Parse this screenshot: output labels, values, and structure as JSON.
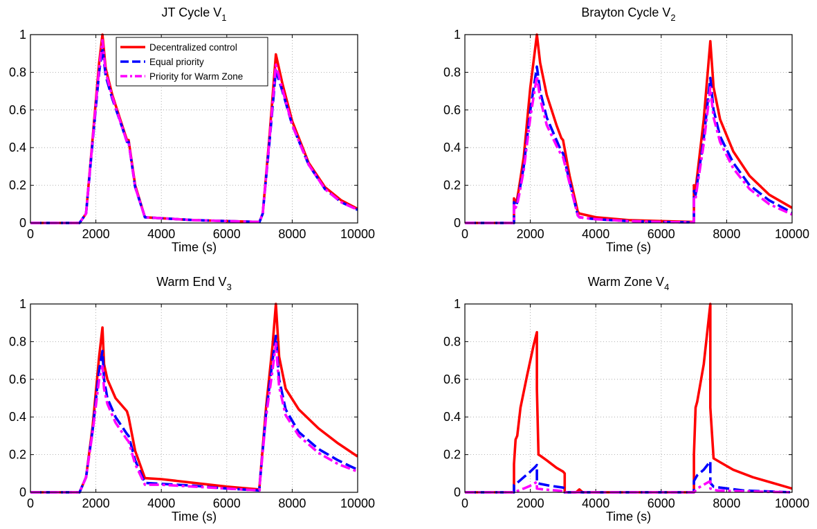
{
  "figure": {
    "legend_entries": [
      "Decentralized control",
      "Equal priority",
      "Priority for Warm Zone"
    ]
  },
  "chart_data": [
    {
      "type": "line",
      "title": "JT Cycle V",
      "title_subscript": "1",
      "xlabel": "Time (s)",
      "ylabel": "",
      "xlim": [
        0,
        10000
      ],
      "ylim": [
        0,
        1
      ],
      "xticks": [
        "0",
        "2000",
        "4000",
        "6000",
        "8000",
        "10000"
      ],
      "yticks": [
        "0",
        "0.2",
        "0.4",
        "0.6",
        "0.8",
        "1"
      ],
      "grid": true,
      "legend": "top-left",
      "series": [
        {
          "name": "Decentralized control",
          "color": "#ff0000",
          "style": "solid",
          "x": [
            0,
            1500,
            1700,
            1900,
            2100,
            2200,
            2300,
            2500,
            2800,
            2950,
            3000,
            3200,
            3500,
            4000,
            5000,
            6000,
            7000,
            7100,
            7300,
            7500,
            7700,
            8000,
            8500,
            9000,
            9500,
            10000
          ],
          "y": [
            0,
            0,
            0.05,
            0.45,
            0.85,
            1.0,
            0.82,
            0.68,
            0.52,
            0.44,
            0.44,
            0.2,
            0.03,
            0.025,
            0.015,
            0.01,
            0.005,
            0.05,
            0.45,
            0.895,
            0.74,
            0.54,
            0.32,
            0.19,
            0.12,
            0.075
          ]
        },
        {
          "name": "Equal priority",
          "color": "#0000ff",
          "style": "dashed",
          "x": [
            0,
            1500,
            1700,
            1900,
            2100,
            2200,
            2300,
            2500,
            2800,
            2950,
            3000,
            3200,
            3500,
            4000,
            5000,
            6000,
            7000,
            7100,
            7300,
            7500,
            7700,
            8000,
            8500,
            9000,
            9500,
            10000
          ],
          "y": [
            0,
            0,
            0.05,
            0.43,
            0.8,
            0.93,
            0.78,
            0.66,
            0.51,
            0.43,
            0.43,
            0.19,
            0.03,
            0.025,
            0.015,
            0.01,
            0.005,
            0.05,
            0.42,
            0.81,
            0.7,
            0.52,
            0.31,
            0.18,
            0.11,
            0.07
          ]
        },
        {
          "name": "Priority for Warm Zone",
          "color": "#ff00ff",
          "style": "dashdot",
          "x": [
            0,
            1500,
            1700,
            1900,
            2100,
            2200,
            2300,
            2500,
            2800,
            2950,
            3000,
            3200,
            3500,
            4000,
            5000,
            6000,
            7000,
            7100,
            7300,
            7500,
            7700,
            8000,
            8500,
            9000,
            9500,
            10000
          ],
          "y": [
            0,
            0,
            0.05,
            0.44,
            0.82,
            0.97,
            0.8,
            0.67,
            0.51,
            0.43,
            0.43,
            0.19,
            0.03,
            0.025,
            0.015,
            0.01,
            0.005,
            0.05,
            0.43,
            0.84,
            0.71,
            0.52,
            0.31,
            0.18,
            0.11,
            0.07
          ]
        }
      ]
    },
    {
      "type": "line",
      "title": "Brayton Cycle V",
      "title_subscript": "2",
      "xlabel": "Time (s)",
      "ylabel": "",
      "xlim": [
        0,
        10000
      ],
      "ylim": [
        0,
        1
      ],
      "xticks": [
        "0",
        "2000",
        "4000",
        "6000",
        "8000",
        "10000"
      ],
      "yticks": [
        "0",
        "0.2",
        "0.4",
        "0.6",
        "0.8",
        "1"
      ],
      "grid": true,
      "legend": "none",
      "series": [
        {
          "name": "Decentralized control",
          "color": "#ff0000",
          "style": "solid",
          "x": [
            0,
            1500,
            1500,
            1550,
            1600,
            1650,
            1800,
            2000,
            2200,
            2300,
            2500,
            2800,
            2950,
            3000,
            3200,
            3450,
            3500,
            4000,
            5000,
            6000,
            7000,
            7000,
            7050,
            7100,
            7300,
            7500,
            7600,
            7800,
            8200,
            8700,
            9300,
            10000
          ],
          "y": [
            0,
            0,
            0.13,
            0.11,
            0.13,
            0.18,
            0.35,
            0.72,
            1.0,
            0.85,
            0.68,
            0.52,
            0.45,
            0.44,
            0.25,
            0.06,
            0.05,
            0.03,
            0.015,
            0.01,
            0.005,
            0.2,
            0.18,
            0.25,
            0.55,
            0.965,
            0.72,
            0.55,
            0.38,
            0.25,
            0.15,
            0.08
          ]
        },
        {
          "name": "Equal priority",
          "color": "#0000ff",
          "style": "dashed",
          "x": [
            0,
            1500,
            1500,
            1550,
            1600,
            1650,
            1800,
            2000,
            2200,
            2300,
            2500,
            2800,
            2950,
            3000,
            3200,
            3450,
            3500,
            4000,
            5000,
            6000,
            7000,
            7000,
            7050,
            7100,
            7300,
            7500,
            7600,
            7800,
            8200,
            8700,
            9300,
            10000
          ],
          "y": [
            0,
            0,
            0.11,
            0.09,
            0.11,
            0.15,
            0.3,
            0.6,
            0.83,
            0.7,
            0.56,
            0.44,
            0.38,
            0.37,
            0.22,
            0.04,
            0.03,
            0.02,
            0.01,
            0.005,
            0.003,
            0.17,
            0.15,
            0.21,
            0.45,
            0.77,
            0.6,
            0.46,
            0.32,
            0.2,
            0.12,
            0.055
          ]
        },
        {
          "name": "Priority for Warm Zone",
          "color": "#ff00ff",
          "style": "dashdot",
          "x": [
            0,
            1500,
            1500,
            1550,
            1600,
            1650,
            1800,
            2000,
            2200,
            2300,
            2500,
            2800,
            2950,
            3000,
            3200,
            3450,
            3500,
            4000,
            5000,
            6000,
            7000,
            7000,
            7050,
            7100,
            7300,
            7500,
            7600,
            7800,
            8200,
            8700,
            9300,
            10000
          ],
          "y": [
            0,
            0,
            0.1,
            0.08,
            0.1,
            0.14,
            0.28,
            0.56,
            0.78,
            0.66,
            0.52,
            0.41,
            0.36,
            0.35,
            0.21,
            0.04,
            0.03,
            0.02,
            0.01,
            0.005,
            0.003,
            0.14,
            0.13,
            0.19,
            0.42,
            0.72,
            0.56,
            0.43,
            0.29,
            0.18,
            0.1,
            0.045
          ]
        }
      ]
    },
    {
      "type": "line",
      "title": "Warm End V",
      "title_subscript": "3",
      "xlabel": "Time (s)",
      "ylabel": "",
      "xlim": [
        0,
        10000
      ],
      "ylim": [
        0,
        1
      ],
      "xticks": [
        "0",
        "2000",
        "4000",
        "6000",
        "8000",
        "10000"
      ],
      "yticks": [
        "0",
        "0.2",
        "0.4",
        "0.6",
        "0.8",
        "1"
      ],
      "grid": true,
      "legend": "none",
      "series": [
        {
          "name": "Decentralized control",
          "color": "#ff0000",
          "style": "solid",
          "x": [
            0,
            1500,
            1700,
            1900,
            2100,
            2200,
            2250,
            2350,
            2600,
            2950,
            3000,
            3200,
            3500,
            4000,
            5000,
            6000,
            7000,
            7000,
            7200,
            7400,
            7500,
            7600,
            7800,
            8200,
            8800,
            9400,
            10000
          ],
          "y": [
            0,
            0,
            0.08,
            0.35,
            0.72,
            0.875,
            0.68,
            0.6,
            0.5,
            0.43,
            0.4,
            0.22,
            0.075,
            0.07,
            0.05,
            0.03,
            0.015,
            0.03,
            0.45,
            0.78,
            1.0,
            0.72,
            0.55,
            0.44,
            0.34,
            0.26,
            0.19
          ]
        },
        {
          "name": "Equal priority",
          "color": "#0000ff",
          "style": "dashed",
          "x": [
            0,
            1500,
            1700,
            1900,
            2100,
            2200,
            2250,
            2350,
            2600,
            2950,
            3000,
            3200,
            3500,
            4000,
            5000,
            6000,
            7000,
            7000,
            7200,
            7400,
            7500,
            7600,
            7800,
            8200,
            8800,
            9400,
            10000
          ],
          "y": [
            0,
            0,
            0.08,
            0.33,
            0.65,
            0.75,
            0.6,
            0.5,
            0.4,
            0.31,
            0.3,
            0.17,
            0.05,
            0.045,
            0.035,
            0.02,
            0.01,
            0.03,
            0.42,
            0.7,
            0.83,
            0.6,
            0.44,
            0.32,
            0.23,
            0.17,
            0.12
          ]
        },
        {
          "name": "Priority for Warm Zone",
          "color": "#ff00ff",
          "style": "dashdot",
          "x": [
            0,
            1500,
            1700,
            1900,
            2100,
            2200,
            2250,
            2350,
            2600,
            2950,
            3000,
            3200,
            3500,
            4000,
            5000,
            6000,
            7000,
            7000,
            7200,
            7400,
            7500,
            7600,
            7800,
            8200,
            8800,
            9400,
            10000
          ],
          "y": [
            0,
            0,
            0.08,
            0.32,
            0.6,
            0.67,
            0.55,
            0.47,
            0.37,
            0.28,
            0.27,
            0.15,
            0.04,
            0.04,
            0.03,
            0.02,
            0.01,
            0.03,
            0.4,
            0.65,
            0.79,
            0.56,
            0.41,
            0.3,
            0.21,
            0.15,
            0.11
          ]
        }
      ]
    },
    {
      "type": "line",
      "title": "Warm Zone V",
      "title_subscript": "4",
      "xlabel": "Time (s)",
      "ylabel": "",
      "xlim": [
        0,
        10000
      ],
      "ylim": [
        0,
        1
      ],
      "xticks": [
        "0",
        "2000",
        "4000",
        "6000",
        "8000",
        "10000"
      ],
      "yticks": [
        "0",
        "0.2",
        "0.4",
        "0.6",
        "0.8",
        "1"
      ],
      "grid": true,
      "legend": "none",
      "series": [
        {
          "name": "Decentralized control",
          "color": "#ff0000",
          "style": "solid",
          "x": [
            0,
            1500,
            1500,
            1550,
            1600,
            1700,
            1900,
            2100,
            2200,
            2200,
            2250,
            2300,
            2500,
            2800,
            3000,
            3050,
            3050,
            3400,
            3500,
            3600,
            4000,
            5000,
            6000,
            7000,
            7000,
            7050,
            7100,
            7300,
            7500,
            7500,
            7600,
            7800,
            8200,
            8800,
            9400,
            10000
          ],
          "y": [
            0,
            0,
            0.15,
            0.28,
            0.3,
            0.45,
            0.62,
            0.78,
            0.85,
            0.55,
            0.2,
            0.195,
            0.17,
            0.13,
            0.11,
            0.1,
            0.0,
            0.0,
            0.015,
            0.0,
            0.0,
            0.0,
            0.0,
            0.0,
            0.2,
            0.45,
            0.48,
            0.68,
            1.0,
            0.45,
            0.18,
            0.16,
            0.12,
            0.08,
            0.05,
            0.02
          ]
        },
        {
          "name": "Equal priority",
          "color": "#0000ff",
          "style": "dashed",
          "x": [
            0,
            1500,
            1500,
            1600,
            1800,
            2000,
            2150,
            2200,
            2200,
            2300,
            2600,
            3000,
            3050,
            3050,
            3500,
            4000,
            5000,
            6000,
            7000,
            7000,
            7100,
            7300,
            7500,
            7500,
            7600,
            7800,
            8500,
            9200,
            10000
          ],
          "y": [
            0,
            0,
            0.04,
            0.05,
            0.08,
            0.11,
            0.135,
            0.145,
            0.05,
            0.045,
            0.035,
            0.025,
            0.02,
            0.0,
            0.0,
            0.0,
            0.0,
            0.0,
            0.0,
            0.06,
            0.09,
            0.12,
            0.165,
            0.05,
            0.03,
            0.025,
            0.01,
            0.005,
            0.0
          ]
        },
        {
          "name": "Priority for Warm Zone",
          "color": "#ff00ff",
          "style": "dashdot",
          "x": [
            0,
            1500,
            1800,
            2000,
            2150,
            2200,
            2200,
            2400,
            2800,
            3050,
            3050,
            3500,
            4000,
            5000,
            6000,
            7000,
            7100,
            7300,
            7450,
            7500,
            7500,
            7700,
            8500,
            10000
          ],
          "y": [
            0,
            0,
            0.02,
            0.035,
            0.05,
            0.055,
            0.02,
            0.015,
            0.01,
            0.005,
            0.0,
            0.0,
            0.0,
            0.0,
            0.0,
            0.0,
            0.02,
            0.04,
            0.055,
            0.058,
            0.02,
            0.01,
            0.005,
            0.0
          ]
        }
      ]
    }
  ]
}
